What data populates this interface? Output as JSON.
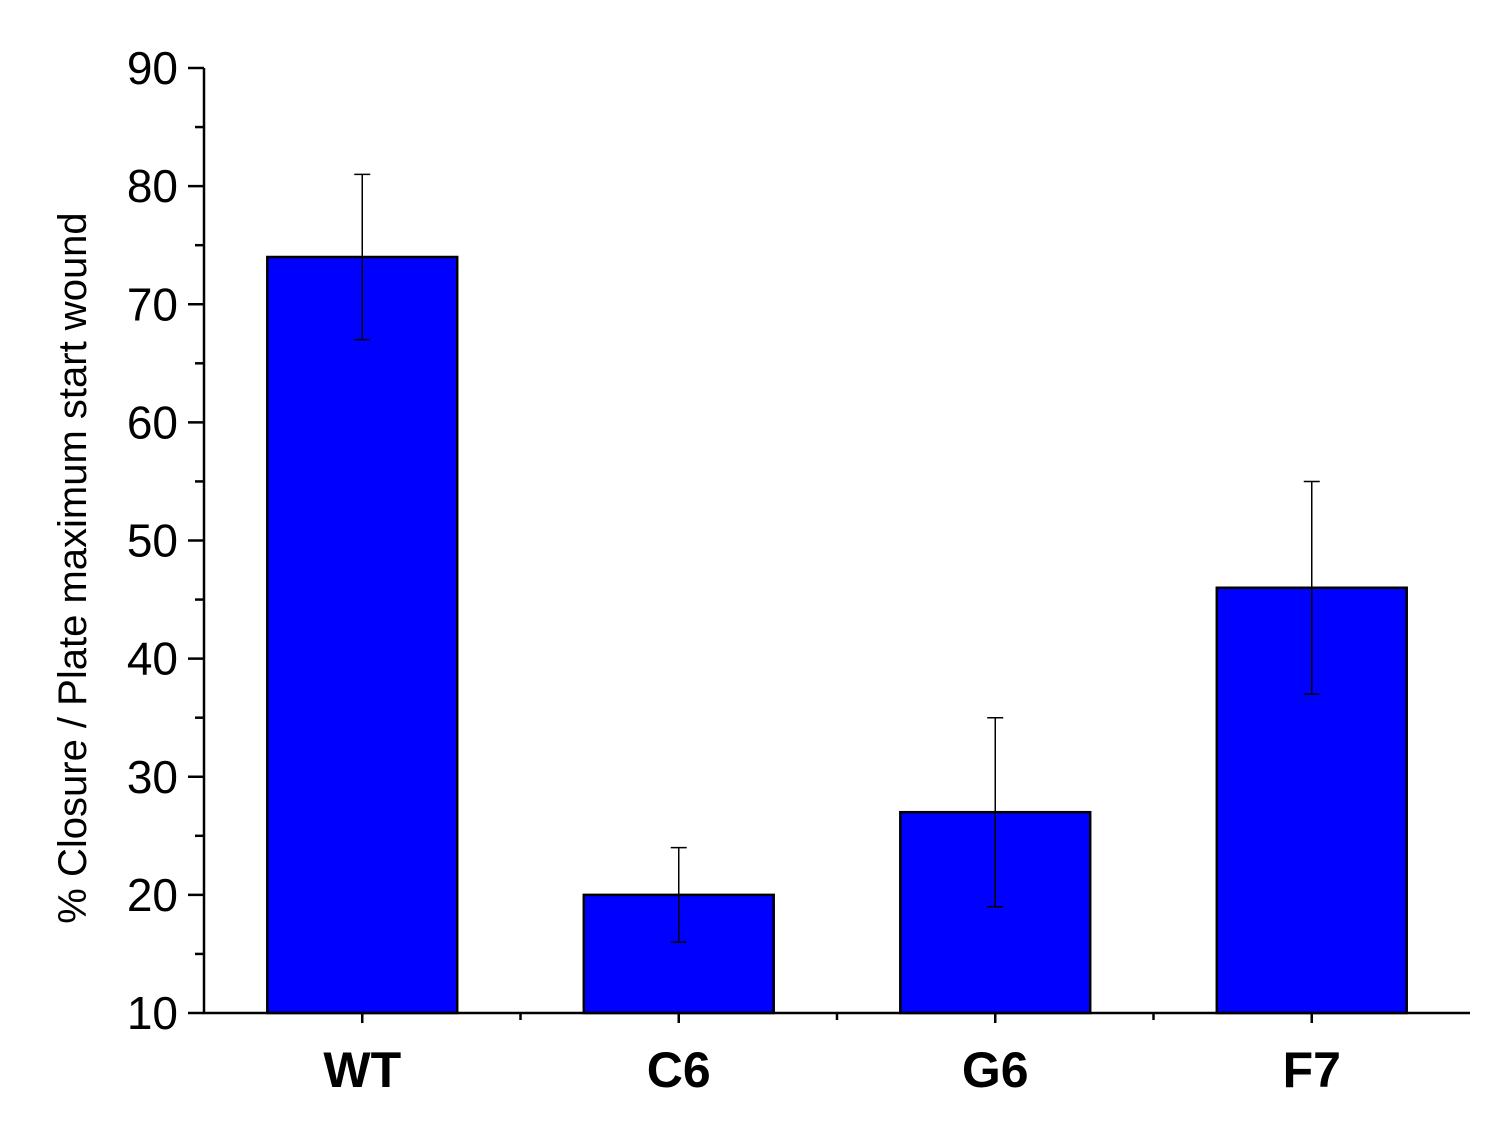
{
  "chart_data": {
    "type": "bar",
    "title": "",
    "xlabel": "",
    "ylabel": "% Closure / Plate maximum start wound",
    "ylim": [
      10,
      90
    ],
    "yticks": [
      10,
      20,
      30,
      40,
      50,
      60,
      70,
      80,
      90
    ],
    "yminor_step": 5,
    "categories": [
      "WT",
      "C6",
      "G6",
      "F7"
    ],
    "series": [
      {
        "values": [
          74,
          20,
          27,
          46
        ],
        "error_low": [
          67,
          16,
          19,
          37
        ],
        "error_high": [
          81,
          24,
          35,
          55
        ],
        "color": "#0000ff"
      }
    ],
    "grid": false,
    "legend": "none"
  }
}
